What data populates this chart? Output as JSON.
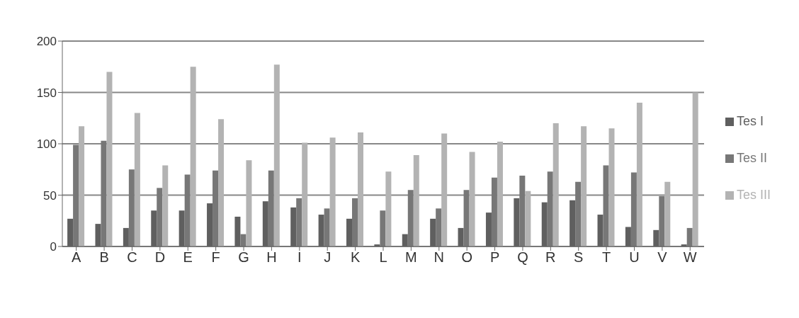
{
  "chart_data": {
    "type": "bar",
    "categories": [
      "A",
      "B",
      "C",
      "D",
      "E",
      "F",
      "G",
      "H",
      "I",
      "J",
      "K",
      "L",
      "M",
      "N",
      "O",
      "P",
      "Q",
      "R",
      "S",
      "T",
      "U",
      "V",
      "W"
    ],
    "series": [
      {
        "name": "Tes I",
        "color": "#5f5f5f",
        "values": [
          27,
          22,
          18,
          35,
          35,
          42,
          29,
          44,
          38,
          31,
          27,
          2,
          12,
          27,
          18,
          33,
          47,
          43,
          45,
          31,
          19,
          16,
          2
        ]
      },
      {
        "name": "Tes II",
        "color": "#777777",
        "values": [
          99,
          103,
          75,
          57,
          70,
          74,
          12,
          74,
          47,
          37,
          47,
          35,
          55,
          37,
          55,
          67,
          69,
          73,
          63,
          79,
          72,
          49,
          18
        ]
      },
      {
        "name": "Tes III",
        "color": "#b3b3b3",
        "values": [
          117,
          170,
          130,
          79,
          175,
          124,
          84,
          177,
          101,
          106,
          111,
          73,
          89,
          110,
          92,
          102,
          54,
          120,
          117,
          115,
          140,
          63,
          150
        ]
      }
    ],
    "ylim": [
      0,
      200
    ],
    "yticks": [
      0,
      50,
      100,
      150,
      200
    ],
    "grid": "y",
    "legend": "right"
  }
}
